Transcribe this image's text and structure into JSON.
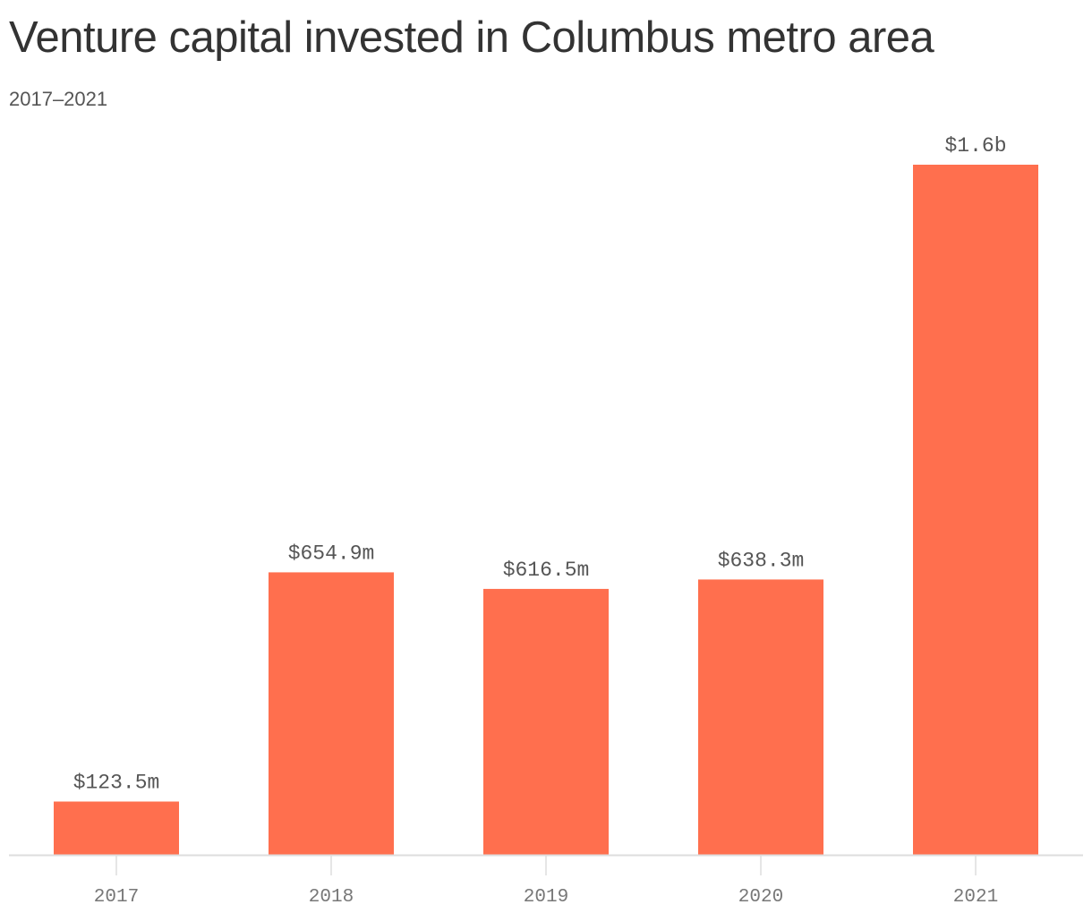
{
  "chart_data": {
    "type": "bar",
    "title": "Venture capital invested in Columbus metro area",
    "subtitle": "2017–2021",
    "xlabel": "",
    "ylabel": "",
    "categories": [
      "2017",
      "2018",
      "2019",
      "2020",
      "2021"
    ],
    "values": [
      123.5,
      654.9,
      616.5,
      638.3,
      1600
    ],
    "value_unit": "millions of dollars",
    "data_labels": [
      "$123.5m",
      "$654.9m",
      "$616.5m",
      "$638.3m",
      "$1.6b"
    ],
    "ylim": [
      0,
      1600
    ],
    "grid": false,
    "legend": "none",
    "colors": {
      "bar": "#ff6f4e",
      "axis": "#dddddd",
      "value_text": "#555555",
      "tick_text": "#777777"
    }
  }
}
